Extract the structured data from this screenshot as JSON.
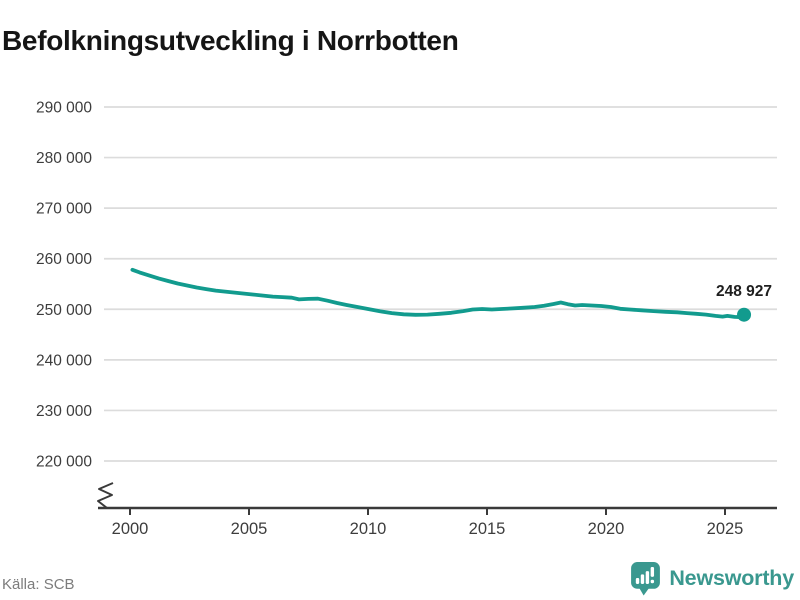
{
  "title": "Befolkningsutveckling i Norrbotten",
  "source": "Källa: SCB",
  "logo": {
    "text": "Newsworthy"
  },
  "colors": {
    "line": "#129b8e",
    "grid": "#dcdcdc",
    "axis": "#3a3a3a",
    "tick_text": "#3d3d3d",
    "end_label_text": "#1f1f1f",
    "title_text": "#151515",
    "source_text": "#7c7c7c",
    "logo_teal": "#3a988f",
    "logo_glyph": "#ffffff"
  },
  "chart_data": {
    "type": "line",
    "title": "Befolkningsutveckling i Norrbotten",
    "xlabel": "",
    "ylabel": "",
    "grid": true,
    "axis_break": true,
    "legend": "none",
    "xlim": [
      1999.3,
      2027
    ],
    "ylim": [
      215000,
      293000
    ],
    "x_ticks": [
      2000,
      2005,
      2010,
      2015,
      2020,
      2025
    ],
    "y_ticks": [
      {
        "value": 290000,
        "label": "290 000"
      },
      {
        "value": 280000,
        "label": "280 000"
      },
      {
        "value": 270000,
        "label": "270 000"
      },
      {
        "value": 260000,
        "label": "260 000"
      },
      {
        "value": 250000,
        "label": "250 000"
      },
      {
        "value": 240000,
        "label": "240 000"
      },
      {
        "value": 230000,
        "label": "230 000"
      },
      {
        "value": 220000,
        "label": "220 000"
      }
    ],
    "end_label": "248 927",
    "end_value": 248927,
    "series": [
      {
        "name": "Norrbotten",
        "points": [
          [
            2000.1,
            257800
          ],
          [
            2000.4,
            257300
          ],
          [
            2000.8,
            256700
          ],
          [
            2001.2,
            256100
          ],
          [
            2001.6,
            255600
          ],
          [
            2002.0,
            255100
          ],
          [
            2002.4,
            254700
          ],
          [
            2002.8,
            254300
          ],
          [
            2003.2,
            254000
          ],
          [
            2003.6,
            253700
          ],
          [
            2004.0,
            253500
          ],
          [
            2004.4,
            253300
          ],
          [
            2004.8,
            253100
          ],
          [
            2005.2,
            252900
          ],
          [
            2005.6,
            252700
          ],
          [
            2006.0,
            252500
          ],
          [
            2006.4,
            252400
          ],
          [
            2006.8,
            252300
          ],
          [
            2007.1,
            251950
          ],
          [
            2007.5,
            252050
          ],
          [
            2007.9,
            252100
          ],
          [
            2008.3,
            251700
          ],
          [
            2008.7,
            251250
          ],
          [
            2009.1,
            250850
          ],
          [
            2009.5,
            250500
          ],
          [
            2010.0,
            250050
          ],
          [
            2010.5,
            249600
          ],
          [
            2011.0,
            249250
          ],
          [
            2011.5,
            249000
          ],
          [
            2012.0,
            248900
          ],
          [
            2012.5,
            248950
          ],
          [
            2013.0,
            249100
          ],
          [
            2013.5,
            249300
          ],
          [
            2014.0,
            249650
          ],
          [
            2014.4,
            249950
          ],
          [
            2014.8,
            250050
          ],
          [
            2015.2,
            249950
          ],
          [
            2015.6,
            250050
          ],
          [
            2016.0,
            250150
          ],
          [
            2016.5,
            250300
          ],
          [
            2017.0,
            250450
          ],
          [
            2017.4,
            250700
          ],
          [
            2017.8,
            251050
          ],
          [
            2018.1,
            251350
          ],
          [
            2018.4,
            251000
          ],
          [
            2018.7,
            250750
          ],
          [
            2019.0,
            250850
          ],
          [
            2019.4,
            250750
          ],
          [
            2019.8,
            250650
          ],
          [
            2020.2,
            250450
          ],
          [
            2020.6,
            250100
          ],
          [
            2021.0,
            249950
          ],
          [
            2021.5,
            249800
          ],
          [
            2022.0,
            249650
          ],
          [
            2022.5,
            249500
          ],
          [
            2023.0,
            249400
          ],
          [
            2023.4,
            249250
          ],
          [
            2023.8,
            249100
          ],
          [
            2024.2,
            248950
          ],
          [
            2024.6,
            248700
          ],
          [
            2024.9,
            248550
          ],
          [
            2025.1,
            248700
          ],
          [
            2025.4,
            248500
          ],
          [
            2025.6,
            248450
          ],
          [
            2025.8,
            248927
          ]
        ]
      }
    ]
  }
}
